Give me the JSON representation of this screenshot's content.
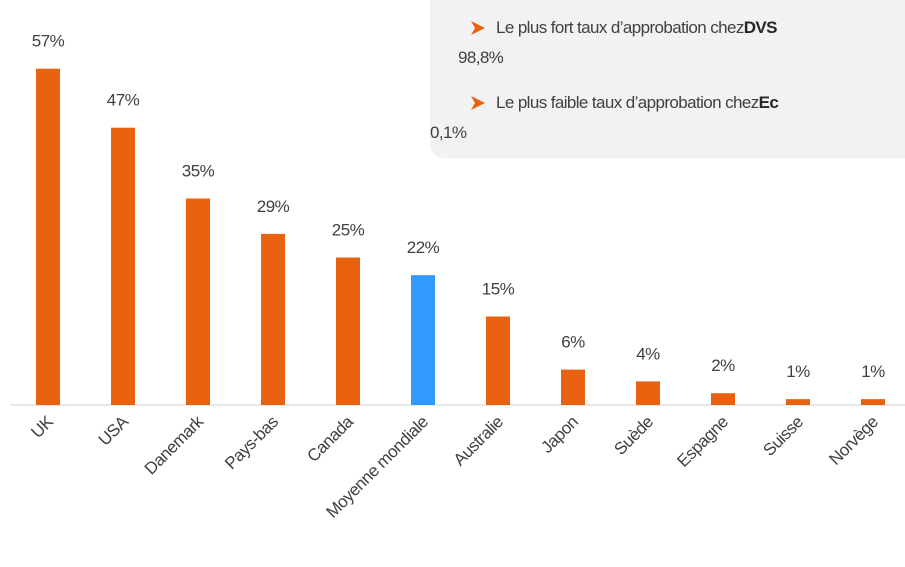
{
  "chart_data": {
    "type": "bar",
    "categories": [
      "UK",
      "USA",
      "Danemark",
      "Pays-bas",
      "Canada",
      "Moyenne mondiale",
      "Australie",
      "Japon",
      "Suède",
      "Espagne",
      "Suisse",
      "Norvège"
    ],
    "values": [
      57,
      47,
      35,
      29,
      25,
      22,
      15,
      6,
      4,
      2,
      1,
      1
    ],
    "value_labels": [
      "57%",
      "47%",
      "35%",
      "29%",
      "25%",
      "22%",
      "15%",
      "6%",
      "4%",
      "2%",
      "1%",
      "1%"
    ],
    "colors": [
      "#e8620f",
      "#e8620f",
      "#e8620f",
      "#e8620f",
      "#e8620f",
      "#3399ff",
      "#e8620f",
      "#e8620f",
      "#e8620f",
      "#e8620f",
      "#e8620f",
      "#e8620f"
    ]
  },
  "annotations": [
    {
      "text": "Le plus fort taux d’approbation chez ",
      "bold": "DVS",
      "value": "98,8%"
    },
    {
      "text": "Le plus faible taux d’approbation chez ",
      "bold": "Ec",
      "value": "0,1%"
    }
  ]
}
